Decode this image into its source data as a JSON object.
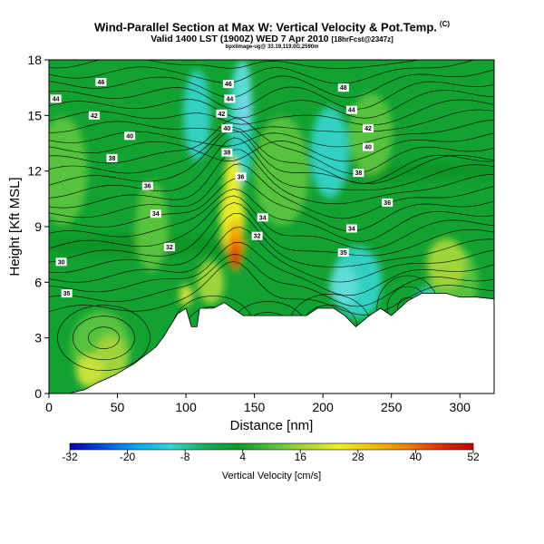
{
  "chart_data": {
    "type": "heatmap",
    "title": "Wind-Parallel Section at Max W: Vertical Velocity & Pot.Temp.",
    "title_mark": "(C)",
    "subtitle": "Valid 1400 LST (1900Z) WED 7 Apr 2010",
    "subtitle_fcst": "[18hrFcst@2347z]",
    "credit": "bpxlimage-ug@ 33.19,119.0G,2590m",
    "xlabel": "Distance [nm]",
    "ylabel": "Height [Kft MSL]",
    "xlim": [
      0,
      325
    ],
    "ylim": [
      0,
      18
    ],
    "xticks": [
      "0",
      "50",
      "100",
      "150",
      "200",
      "250",
      "300"
    ],
    "yticks": [
      "0",
      "3",
      "6",
      "9",
      "12",
      "15",
      "18"
    ],
    "colorbar": {
      "label": "Vertical Velocity [cm/s]",
      "ticks": [
        "-32",
        "-20",
        "-8",
        "4",
        "16",
        "28",
        "40",
        "52"
      ],
      "range": [
        -32,
        52
      ],
      "colors": [
        "#0000b0",
        "#0050e0",
        "#00a8f0",
        "#30d8d8",
        "#18b060",
        "#0a9a24",
        "#50c040",
        "#a8d830",
        "#f0f020",
        "#f0c000",
        "#f08000",
        "#e03000",
        "#c00000"
      ]
    },
    "contour_labels": [
      {
        "text": "46",
        "x": 38,
        "z": 16.8
      },
      {
        "text": "44",
        "x": 5,
        "z": 15.9
      },
      {
        "text": "42",
        "x": 33,
        "z": 15.0
      },
      {
        "text": "40",
        "x": 59,
        "z": 13.9
      },
      {
        "text": "38",
        "x": 46,
        "z": 12.7
      },
      {
        "text": "36",
        "x": 72,
        "z": 11.2
      },
      {
        "text": "34",
        "x": 78,
        "z": 9.7
      },
      {
        "text": "32",
        "x": 88,
        "z": 7.9
      },
      {
        "text": "30",
        "x": 9,
        "z": 7.1
      },
      {
        "text": "35",
        "x": 13,
        "z": 5.4
      },
      {
        "text": "46",
        "x": 131,
        "z": 16.7
      },
      {
        "text": "44",
        "x": 132,
        "z": 15.9
      },
      {
        "text": "42",
        "x": 126,
        "z": 15.1
      },
      {
        "text": "40",
        "x": 130,
        "z": 14.3
      },
      {
        "text": "38",
        "x": 130,
        "z": 13.0
      },
      {
        "text": "36",
        "x": 140,
        "z": 11.7
      },
      {
        "text": "34",
        "x": 156,
        "z": 9.5
      },
      {
        "text": "32",
        "x": 152,
        "z": 8.5
      },
      {
        "text": "48",
        "x": 215,
        "z": 16.5
      },
      {
        "text": "44",
        "x": 221,
        "z": 15.3
      },
      {
        "text": "42",
        "x": 233,
        "z": 14.3
      },
      {
        "text": "40",
        "x": 233,
        "z": 13.3
      },
      {
        "text": "38",
        "x": 226,
        "z": 11.9
      },
      {
        "text": "36",
        "x": 247,
        "z": 10.3
      },
      {
        "text": "34",
        "x": 221,
        "z": 8.9
      },
      {
        "text": "35",
        "x": 215,
        "z": 7.6
      }
    ],
    "terrain": [
      [
        0,
        0
      ],
      [
        14,
        0
      ],
      [
        26,
        0.2
      ],
      [
        36,
        0.6
      ],
      [
        48,
        1.0
      ],
      [
        62,
        1.6
      ],
      [
        78,
        2.5
      ],
      [
        84,
        3.1
      ],
      [
        94,
        4.3
      ],
      [
        100,
        4.6
      ],
      [
        104,
        3.6
      ],
      [
        108,
        3.6
      ],
      [
        110,
        4.6
      ],
      [
        120,
        4.6
      ],
      [
        128,
        4.9
      ],
      [
        134,
        4.6
      ],
      [
        142,
        4.2
      ],
      [
        150,
        4.2
      ],
      [
        162,
        4.2
      ],
      [
        172,
        4.2
      ],
      [
        188,
        4.2
      ],
      [
        196,
        4.6
      ],
      [
        208,
        4.6
      ],
      [
        216,
        4.2
      ],
      [
        224,
        3.6
      ],
      [
        234,
        4.2
      ],
      [
        242,
        4.6
      ],
      [
        250,
        4.2
      ],
      [
        262,
        5.0
      ],
      [
        272,
        5.4
      ],
      [
        290,
        5.4
      ],
      [
        300,
        5.2
      ],
      [
        312,
        5.2
      ],
      [
        325,
        5.1
      ]
    ],
    "features": [
      {
        "name": "updraft-core",
        "x": 136,
        "z": 7.5,
        "peak": 50
      },
      {
        "name": "downdraft-lobe",
        "x": 142,
        "z": 13.5,
        "peak": -8
      }
    ]
  }
}
